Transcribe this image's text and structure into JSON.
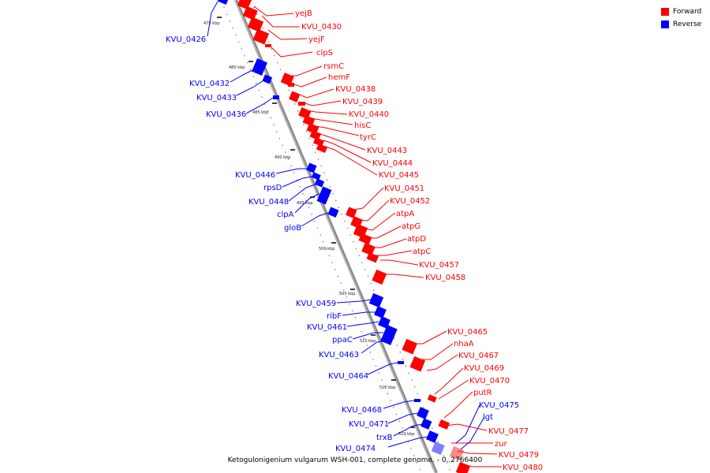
{
  "caption": "Ketogulonigenium vulgarum WSH-001, complete genome. - 0..2766400",
  "legend": [
    {
      "label": "Forward",
      "color": "#ff0000"
    },
    {
      "label": "Reverse",
      "color": "#0000ff"
    }
  ],
  "colors": {
    "forward": "#ff0000",
    "reverse": "#0000ff",
    "backbone": "#808080"
  },
  "ticks": [
    "475 kbp",
    "480 kbp",
    "485 kbp",
    "490 kbp",
    "495 kbp",
    "500 kbp",
    "505 kbp",
    "510 kbp",
    "515 kbp",
    "520 kbp"
  ],
  "forward_genes": [
    "yejB",
    "KVU_0430",
    "yejF",
    "clpS",
    "rsmC",
    "hemF",
    "KVU_0438",
    "KVU_0439",
    "KVU_0440",
    "hisC",
    "tyrC",
    "KVU_0443",
    "KVU_0444",
    "KVU_0445",
    "KVU_0451",
    "KVU_0452",
    "atpA",
    "atpG",
    "atpD",
    "atpC",
    "KVU_0457",
    "KVU_0458",
    "KVU_0465",
    "nhaA",
    "KVU_0467",
    "KVU_0469",
    "KVU_0470",
    "putR",
    "KVU_0477",
    "zur",
    "KVU_0479",
    "KVU_0480"
  ],
  "reverse_genes": [
    "KVU_0426",
    "KVU_0432",
    "KVU_0433",
    "KVU_0436",
    "KVU_0446",
    "rpsD",
    "KVU_0448",
    "clpA",
    "gloB",
    "KVU_0459",
    "ribF",
    "KVU_0461",
    "ppaC",
    "KVU_0463",
    "KVU_0464",
    "KVU_0468",
    "KVU_0471",
    "trxB",
    "KVU_0474",
    "KVU_0475",
    "lgt"
  ]
}
